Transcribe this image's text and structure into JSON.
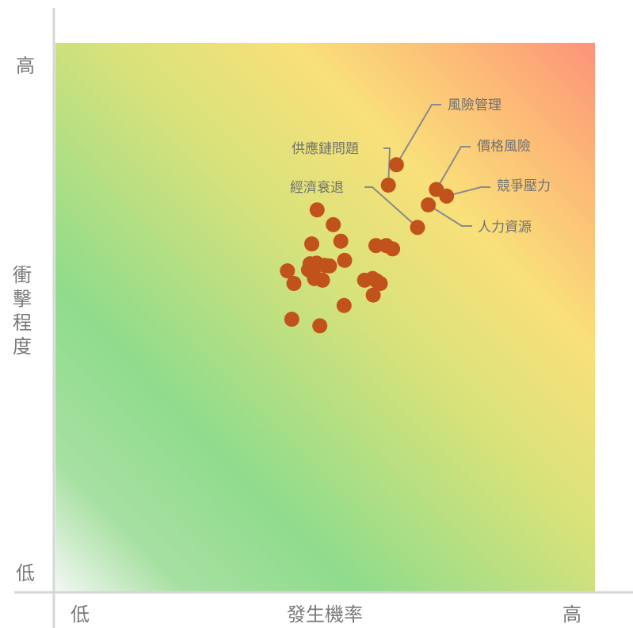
{
  "chart_data": {
    "type": "scatter",
    "title": "",
    "xlabel": "發生機率",
    "ylabel": "衝擊程度",
    "x_ticks": {
      "low": "低",
      "high": "高"
    },
    "y_ticks": {
      "low": "低",
      "high": "高"
    },
    "xlim": [
      0,
      1
    ],
    "ylim": [
      0,
      1
    ],
    "grid": false,
    "background": "green-yellow-red heat gradient (low risk bottom-left, high risk top-right)",
    "colors": {
      "point": "#c1521c",
      "axis": "#d6d6d6",
      "text": "#7a7a7a",
      "gradient_low": "#8fdc8c",
      "gradient_mid": "#f9e07a",
      "gradient_high": "#fc937a"
    },
    "points": [
      {
        "x": 0.632,
        "y": 0.778
      },
      {
        "x": 0.617,
        "y": 0.741
      },
      {
        "x": 0.706,
        "y": 0.733
      },
      {
        "x": 0.725,
        "y": 0.721
      },
      {
        "x": 0.671,
        "y": 0.664
      },
      {
        "x": 0.691,
        "y": 0.705
      },
      {
        "x": 0.485,
        "y": 0.696
      },
      {
        "x": 0.515,
        "y": 0.669
      },
      {
        "x": 0.529,
        "y": 0.639
      },
      {
        "x": 0.475,
        "y": 0.634
      },
      {
        "x": 0.594,
        "y": 0.631
      },
      {
        "x": 0.613,
        "y": 0.631
      },
      {
        "x": 0.625,
        "y": 0.625
      },
      {
        "x": 0.536,
        "y": 0.604
      },
      {
        "x": 0.472,
        "y": 0.598
      },
      {
        "x": 0.484,
        "y": 0.599
      },
      {
        "x": 0.499,
        "y": 0.595
      },
      {
        "x": 0.508,
        "y": 0.594
      },
      {
        "x": 0.469,
        "y": 0.587
      },
      {
        "x": 0.478,
        "y": 0.579
      },
      {
        "x": 0.43,
        "y": 0.585
      },
      {
        "x": 0.495,
        "y": 0.568
      },
      {
        "x": 0.48,
        "y": 0.571
      },
      {
        "x": 0.442,
        "y": 0.562
      },
      {
        "x": 0.602,
        "y": 0.562
      },
      {
        "x": 0.595,
        "y": 0.567
      },
      {
        "x": 0.573,
        "y": 0.568
      },
      {
        "x": 0.588,
        "y": 0.571
      },
      {
        "x": 0.589,
        "y": 0.541
      },
      {
        "x": 0.535,
        "y": 0.522
      },
      {
        "x": 0.438,
        "y": 0.497
      },
      {
        "x": 0.49,
        "y": 0.485
      }
    ],
    "annotations": [
      {
        "text": "風險管理",
        "point": 0
      },
      {
        "text": "供應鏈問題",
        "point": 1
      },
      {
        "text": "價格風險",
        "point": 2
      },
      {
        "text": "競爭壓力",
        "point": 3
      },
      {
        "text": "經濟衰退",
        "point": 4
      },
      {
        "text": "人力資源",
        "point": 5
      }
    ]
  }
}
